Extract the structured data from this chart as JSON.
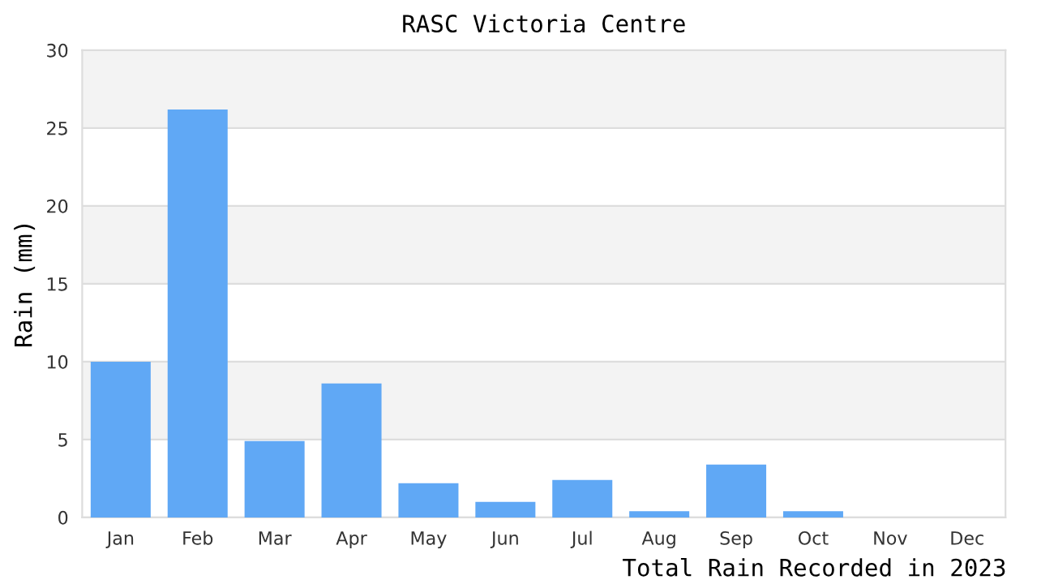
{
  "chart_data": {
    "type": "bar",
    "title": "RASC Victoria Centre",
    "ylabel": "Rain (mm)",
    "categories": [
      "Jan",
      "Feb",
      "Mar",
      "Apr",
      "May",
      "Jun",
      "Jul",
      "Aug",
      "Sep",
      "Oct",
      "Nov",
      "Dec"
    ],
    "values": [
      10.0,
      26.2,
      4.9,
      8.6,
      2.2,
      1.0,
      2.4,
      0.4,
      3.4,
      0.4,
      0,
      0
    ],
    "color": "#60a8f5",
    "ylim": [
      0,
      30
    ],
    "yticks": [
      0,
      5,
      10,
      15,
      20,
      25,
      30
    ],
    "grid": "y",
    "bands": [
      {
        "axis": "y",
        "from": 5,
        "to": 10,
        "color": "#f3f3f3"
      },
      {
        "axis": "y",
        "from": 15,
        "to": 20,
        "color": "#f3f3f3"
      },
      {
        "axis": "y",
        "from": 25,
        "to": 30,
        "color": "#f3f3f3"
      }
    ],
    "annotations": [
      "Total Rain Recorded in 2023"
    ]
  }
}
